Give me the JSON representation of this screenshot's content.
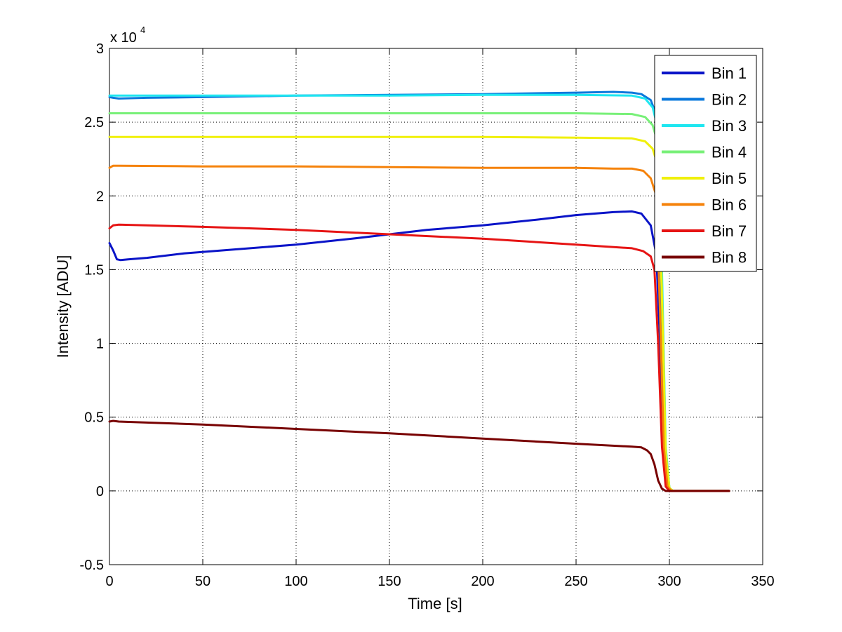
{
  "chart_data": {
    "type": "line",
    "title": "",
    "xlabel": "Time [s]",
    "ylabel": "Intensity [ADU]",
    "xlim": [
      0,
      350
    ],
    "ylim": [
      -5000,
      30000
    ],
    "xticks": [
      0,
      50,
      100,
      150,
      200,
      250,
      300,
      350
    ],
    "yticks": [
      -5000,
      0,
      5000,
      10000,
      15000,
      20000,
      25000,
      30000
    ],
    "ytick_labels": [
      "-0.5",
      "0",
      "0.5",
      "1",
      "1.5",
      "2",
      "2.5",
      "3"
    ],
    "y_exponent_label": "x 10",
    "y_exponent_power": "4",
    "grid": true,
    "legend_position": "top-right",
    "series": [
      {
        "name": "Bin 1",
        "color": "#0a14c8",
        "x": [
          0,
          2,
          4,
          6,
          10,
          20,
          40,
          70,
          100,
          130,
          150,
          170,
          200,
          230,
          250,
          270,
          280,
          285,
          290,
          293,
          295,
          297,
          299,
          301,
          310,
          332
        ],
        "y": [
          16800,
          16300,
          15700,
          15650,
          15700,
          15800,
          16100,
          16400,
          16700,
          17100,
          17400,
          17700,
          18000,
          18400,
          18700,
          18900,
          18950,
          18800,
          18000,
          16000,
          10000,
          3000,
          300,
          0,
          0,
          0
        ]
      },
      {
        "name": "Bin 2",
        "color": "#0a78dc",
        "x": [
          0,
          2,
          5,
          20,
          50,
          100,
          150,
          200,
          250,
          270,
          280,
          285,
          290,
          293,
          295,
          297,
          299,
          301,
          310,
          332
        ],
        "y": [
          26700,
          26650,
          26600,
          26650,
          26700,
          26800,
          26850,
          26900,
          27000,
          27050,
          27000,
          26900,
          26500,
          25500,
          18000,
          5000,
          500,
          0,
          0,
          0
        ]
      },
      {
        "name": "Bin 3",
        "color": "#1ee6f0",
        "x": [
          0,
          5,
          50,
          100,
          150,
          200,
          250,
          280,
          287,
          291,
          294,
          296,
          298,
          300,
          302,
          310,
          332
        ],
        "y": [
          26800,
          26800,
          26800,
          26800,
          26800,
          26850,
          26850,
          26800,
          26600,
          26000,
          24500,
          15000,
          3000,
          200,
          0,
          0,
          0
        ]
      },
      {
        "name": "Bin 4",
        "color": "#78f078",
        "x": [
          0,
          5,
          50,
          100,
          150,
          200,
          250,
          280,
          287,
          291,
          294,
          296,
          298,
          300,
          302,
          310,
          332
        ],
        "y": [
          25600,
          25600,
          25600,
          25600,
          25600,
          25600,
          25600,
          25550,
          25350,
          24800,
          23500,
          14000,
          3000,
          200,
          0,
          0,
          0
        ]
      },
      {
        "name": "Bin 5",
        "color": "#f0f00a",
        "x": [
          0,
          5,
          50,
          100,
          150,
          200,
          250,
          280,
          287,
          291,
          294,
          296,
          298,
          300,
          302,
          310,
          332
        ],
        "y": [
          24000,
          24000,
          24000,
          24000,
          24000,
          24000,
          23950,
          23900,
          23700,
          23200,
          22000,
          13000,
          2500,
          200,
          0,
          0,
          0
        ]
      },
      {
        "name": "Bin 6",
        "color": "#f5820a",
        "x": [
          0,
          2,
          5,
          50,
          100,
          150,
          200,
          250,
          270,
          280,
          286,
          290,
          293,
          295,
          297,
          299,
          301,
          310,
          332
        ],
        "y": [
          21900,
          22050,
          22050,
          22000,
          22000,
          21950,
          21900,
          21900,
          21850,
          21850,
          21700,
          21200,
          20000,
          12000,
          3000,
          300,
          0,
          0,
          0
        ]
      },
      {
        "name": "Bin 7",
        "color": "#e61414",
        "x": [
          0,
          2,
          5,
          20,
          50,
          100,
          150,
          200,
          250,
          280,
          286,
          290,
          292,
          294,
          296,
          298,
          300,
          310,
          332
        ],
        "y": [
          17800,
          18000,
          18050,
          18000,
          17900,
          17700,
          17400,
          17100,
          16700,
          16450,
          16250,
          15900,
          15000,
          10000,
          3000,
          300,
          0,
          0,
          0
        ]
      },
      {
        "name": "Bin 8",
        "color": "#780000",
        "x": [
          0,
          2,
          5,
          50,
          100,
          150,
          200,
          250,
          280,
          285,
          288,
          290,
          292,
          294,
          296,
          298,
          300,
          310,
          332
        ],
        "y": [
          4700,
          4750,
          4700,
          4500,
          4200,
          3900,
          3550,
          3200,
          3000,
          2950,
          2750,
          2500,
          1800,
          700,
          150,
          0,
          0,
          0,
          0
        ]
      }
    ]
  }
}
